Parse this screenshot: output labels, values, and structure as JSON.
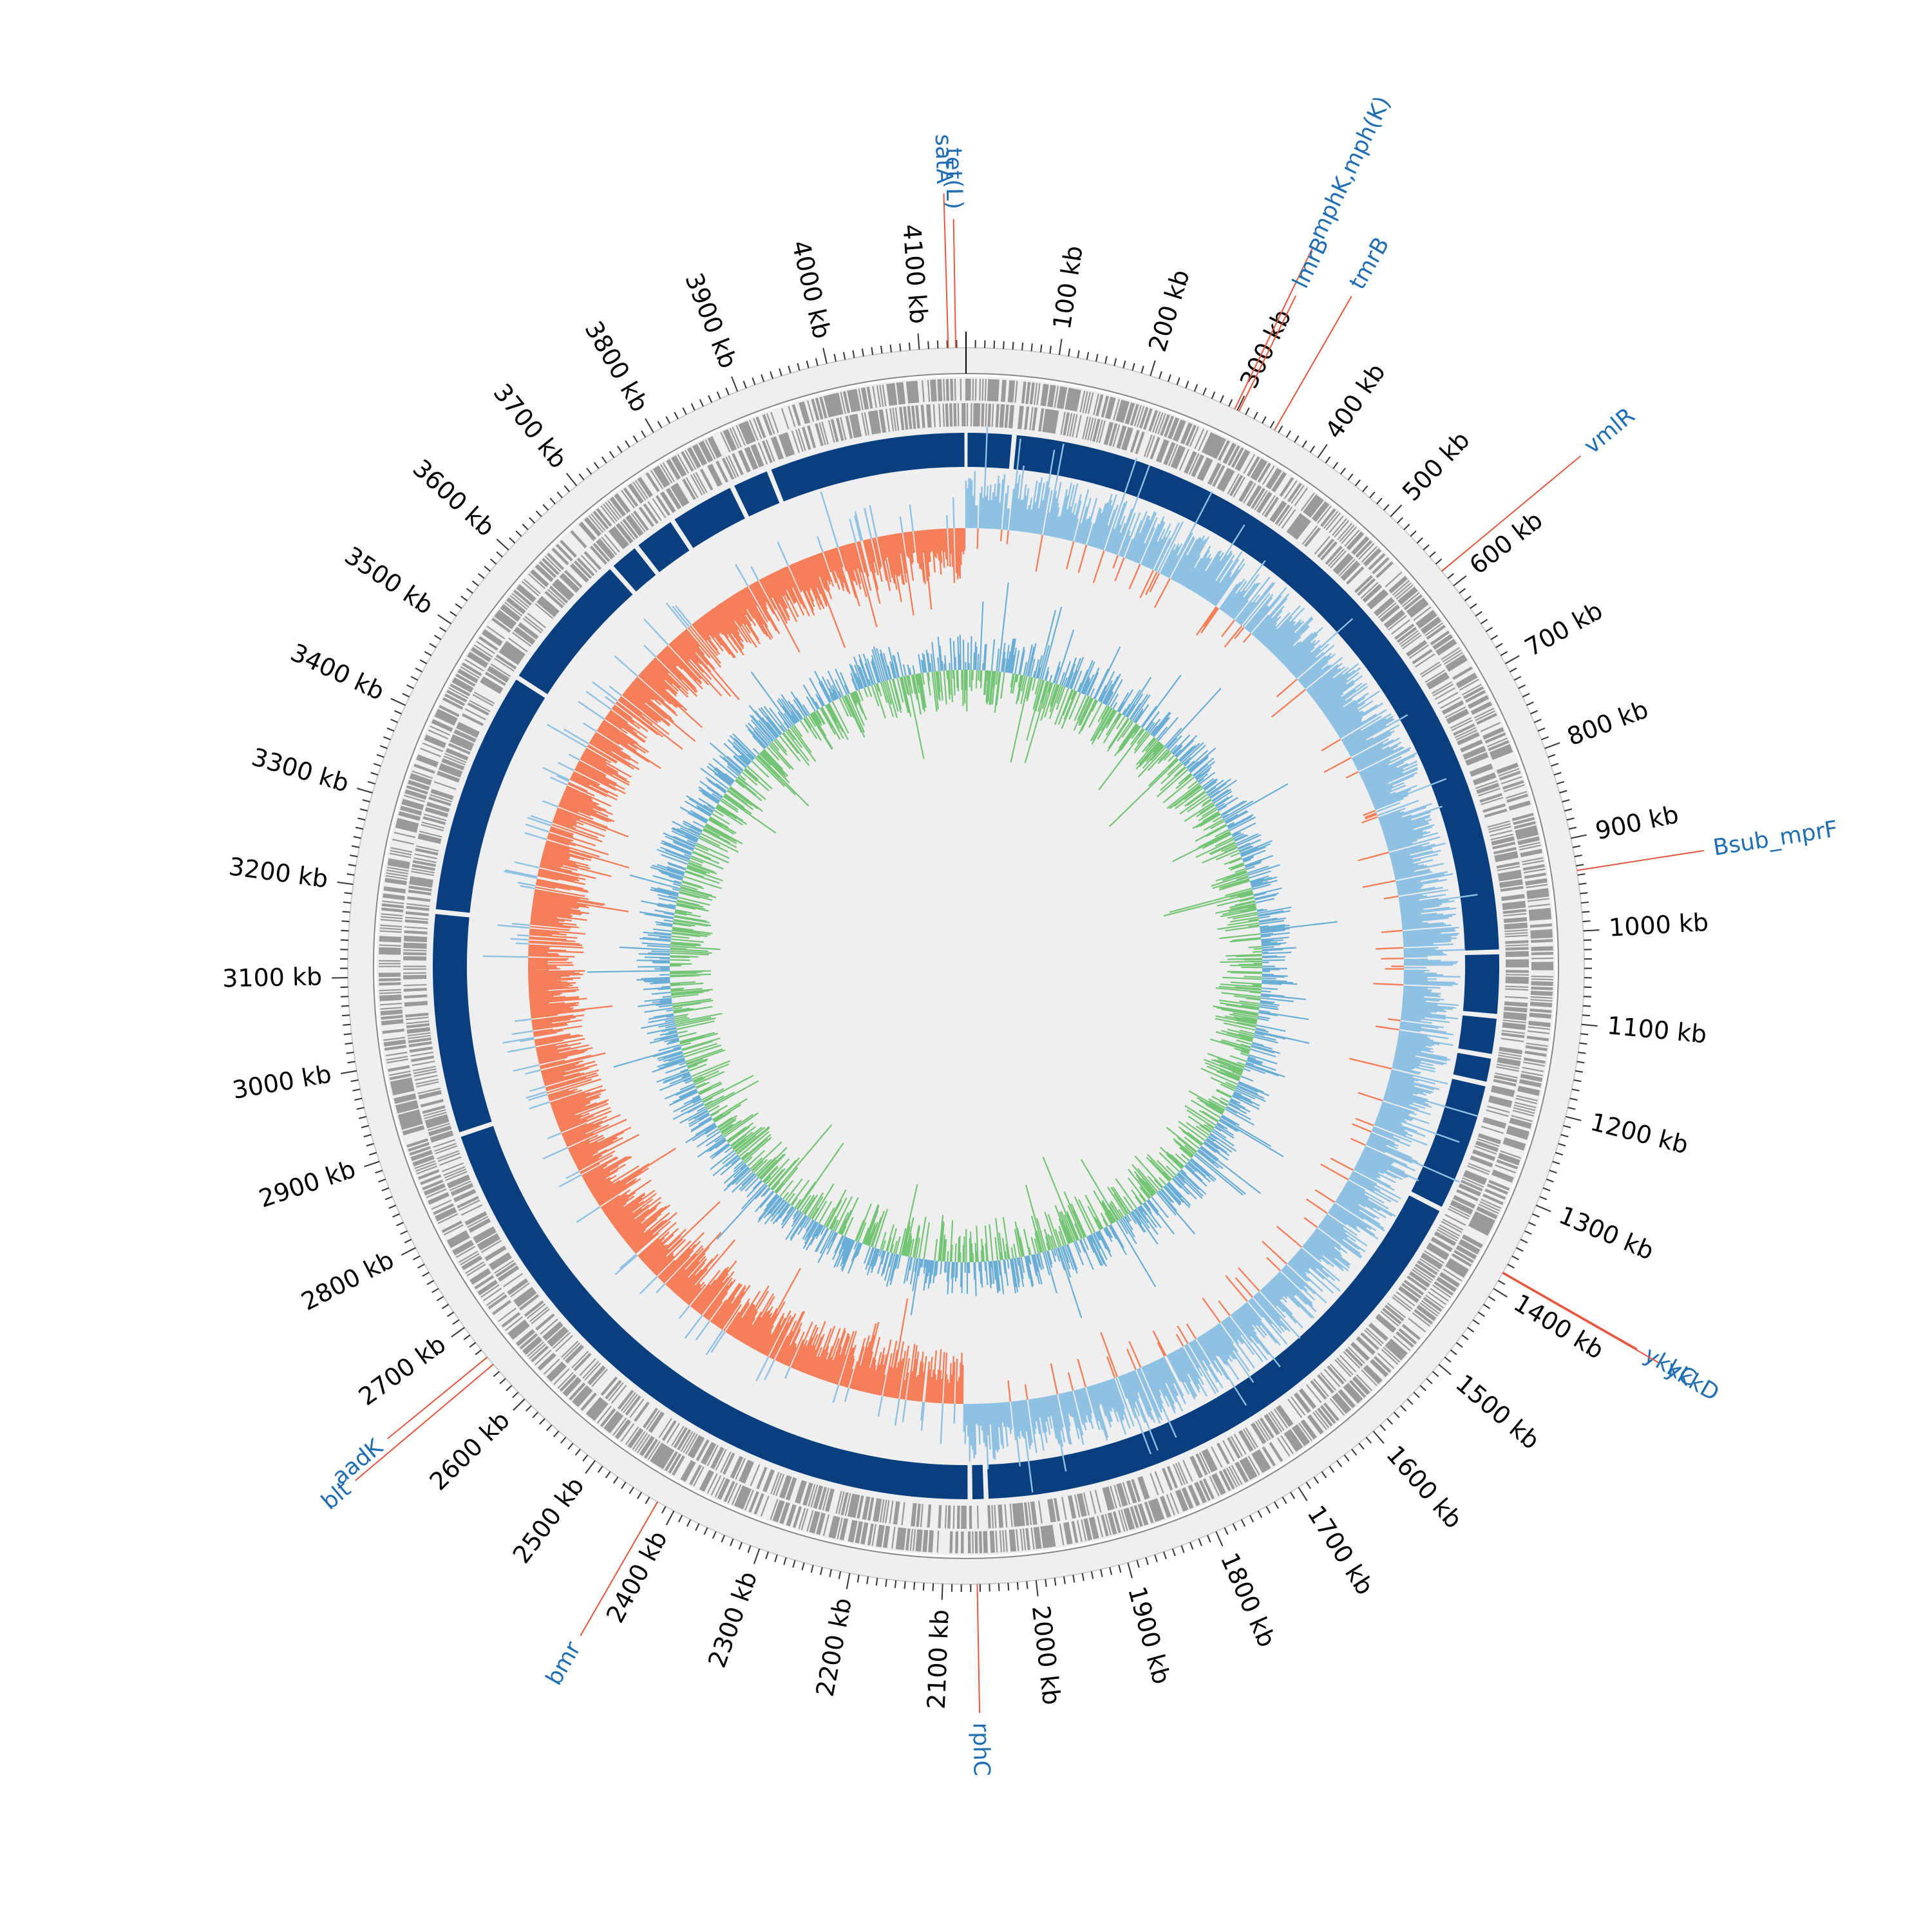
{
  "genome": {
    "length_kb": 4150,
    "tick_interval_kb": 100,
    "tick_suffix": " kb"
  },
  "tick_labels": [
    "100 kb",
    "200 kb",
    "300 kb",
    "400 kb",
    "500 kb",
    "600 kb",
    "700 kb",
    "800 kb",
    "900 kb",
    "1000 kb",
    "1100 kb",
    "1200 kb",
    "1300 kb",
    "1400 kb",
    "1500 kb",
    "1600 kb",
    "1700 kb",
    "1800 kb",
    "1900 kb",
    "2000 kb",
    "2100 kb",
    "2200 kb",
    "2300 kb",
    "2400 kb",
    "2500 kb",
    "2600 kb",
    "2700 kb",
    "2800 kb",
    "2900 kb",
    "3000 kb",
    "3100 kb",
    "3200 kb",
    "3300 kb",
    "3400 kb",
    "3500 kb",
    "3600 kb",
    "3700 kb",
    "3800 kb",
    "3900 kb",
    "4000 kb",
    "4100 kb"
  ],
  "annotations": [
    {
      "label": "tet(L)",
      "position_kb": 4139
    },
    {
      "label": "satA",
      "position_kb": 4131
    },
    {
      "label": "mphK,mph(K)",
      "position_kb": 297
    },
    {
      "label": "lmrB",
      "position_kb": 302
    },
    {
      "label": "tmrB",
      "position_kb": 345
    },
    {
      "label": "vmlR",
      "position_kb": 580
    },
    {
      "label": "Bsub_mprF",
      "position_kb": 935
    },
    {
      "label": "ykkC",
      "position_kb": 1380
    },
    {
      "label": "ykkD",
      "position_kb": 1381
    },
    {
      "label": "rphC",
      "position_kb": 2063
    },
    {
      "label": "bmr",
      "position_kb": 2420
    },
    {
      "label": "blt",
      "position_kb": 2650
    },
    {
      "label": "aadK",
      "position_kb": 2660
    }
  ],
  "tracks": {
    "backbone_gaps_kb": [
      60,
      1020,
      1100,
      1150,
      1185,
      1350,
      2050,
      2070,
      2900,
      3180,
      3490,
      3670,
      3710,
      3765,
      3850,
      3900
    ],
    "colors": {
      "ring_background": "#efefef",
      "cds": "#9a9a9a",
      "backbone": "#0a3f7f",
      "positive_skew": "#8fc1e3",
      "negative_skew": "#f57f5b",
      "positive_content": "#6aaed6",
      "content": "#74c476",
      "label_line": "#e8553d",
      "label_text": "#1f6db2"
    }
  }
}
